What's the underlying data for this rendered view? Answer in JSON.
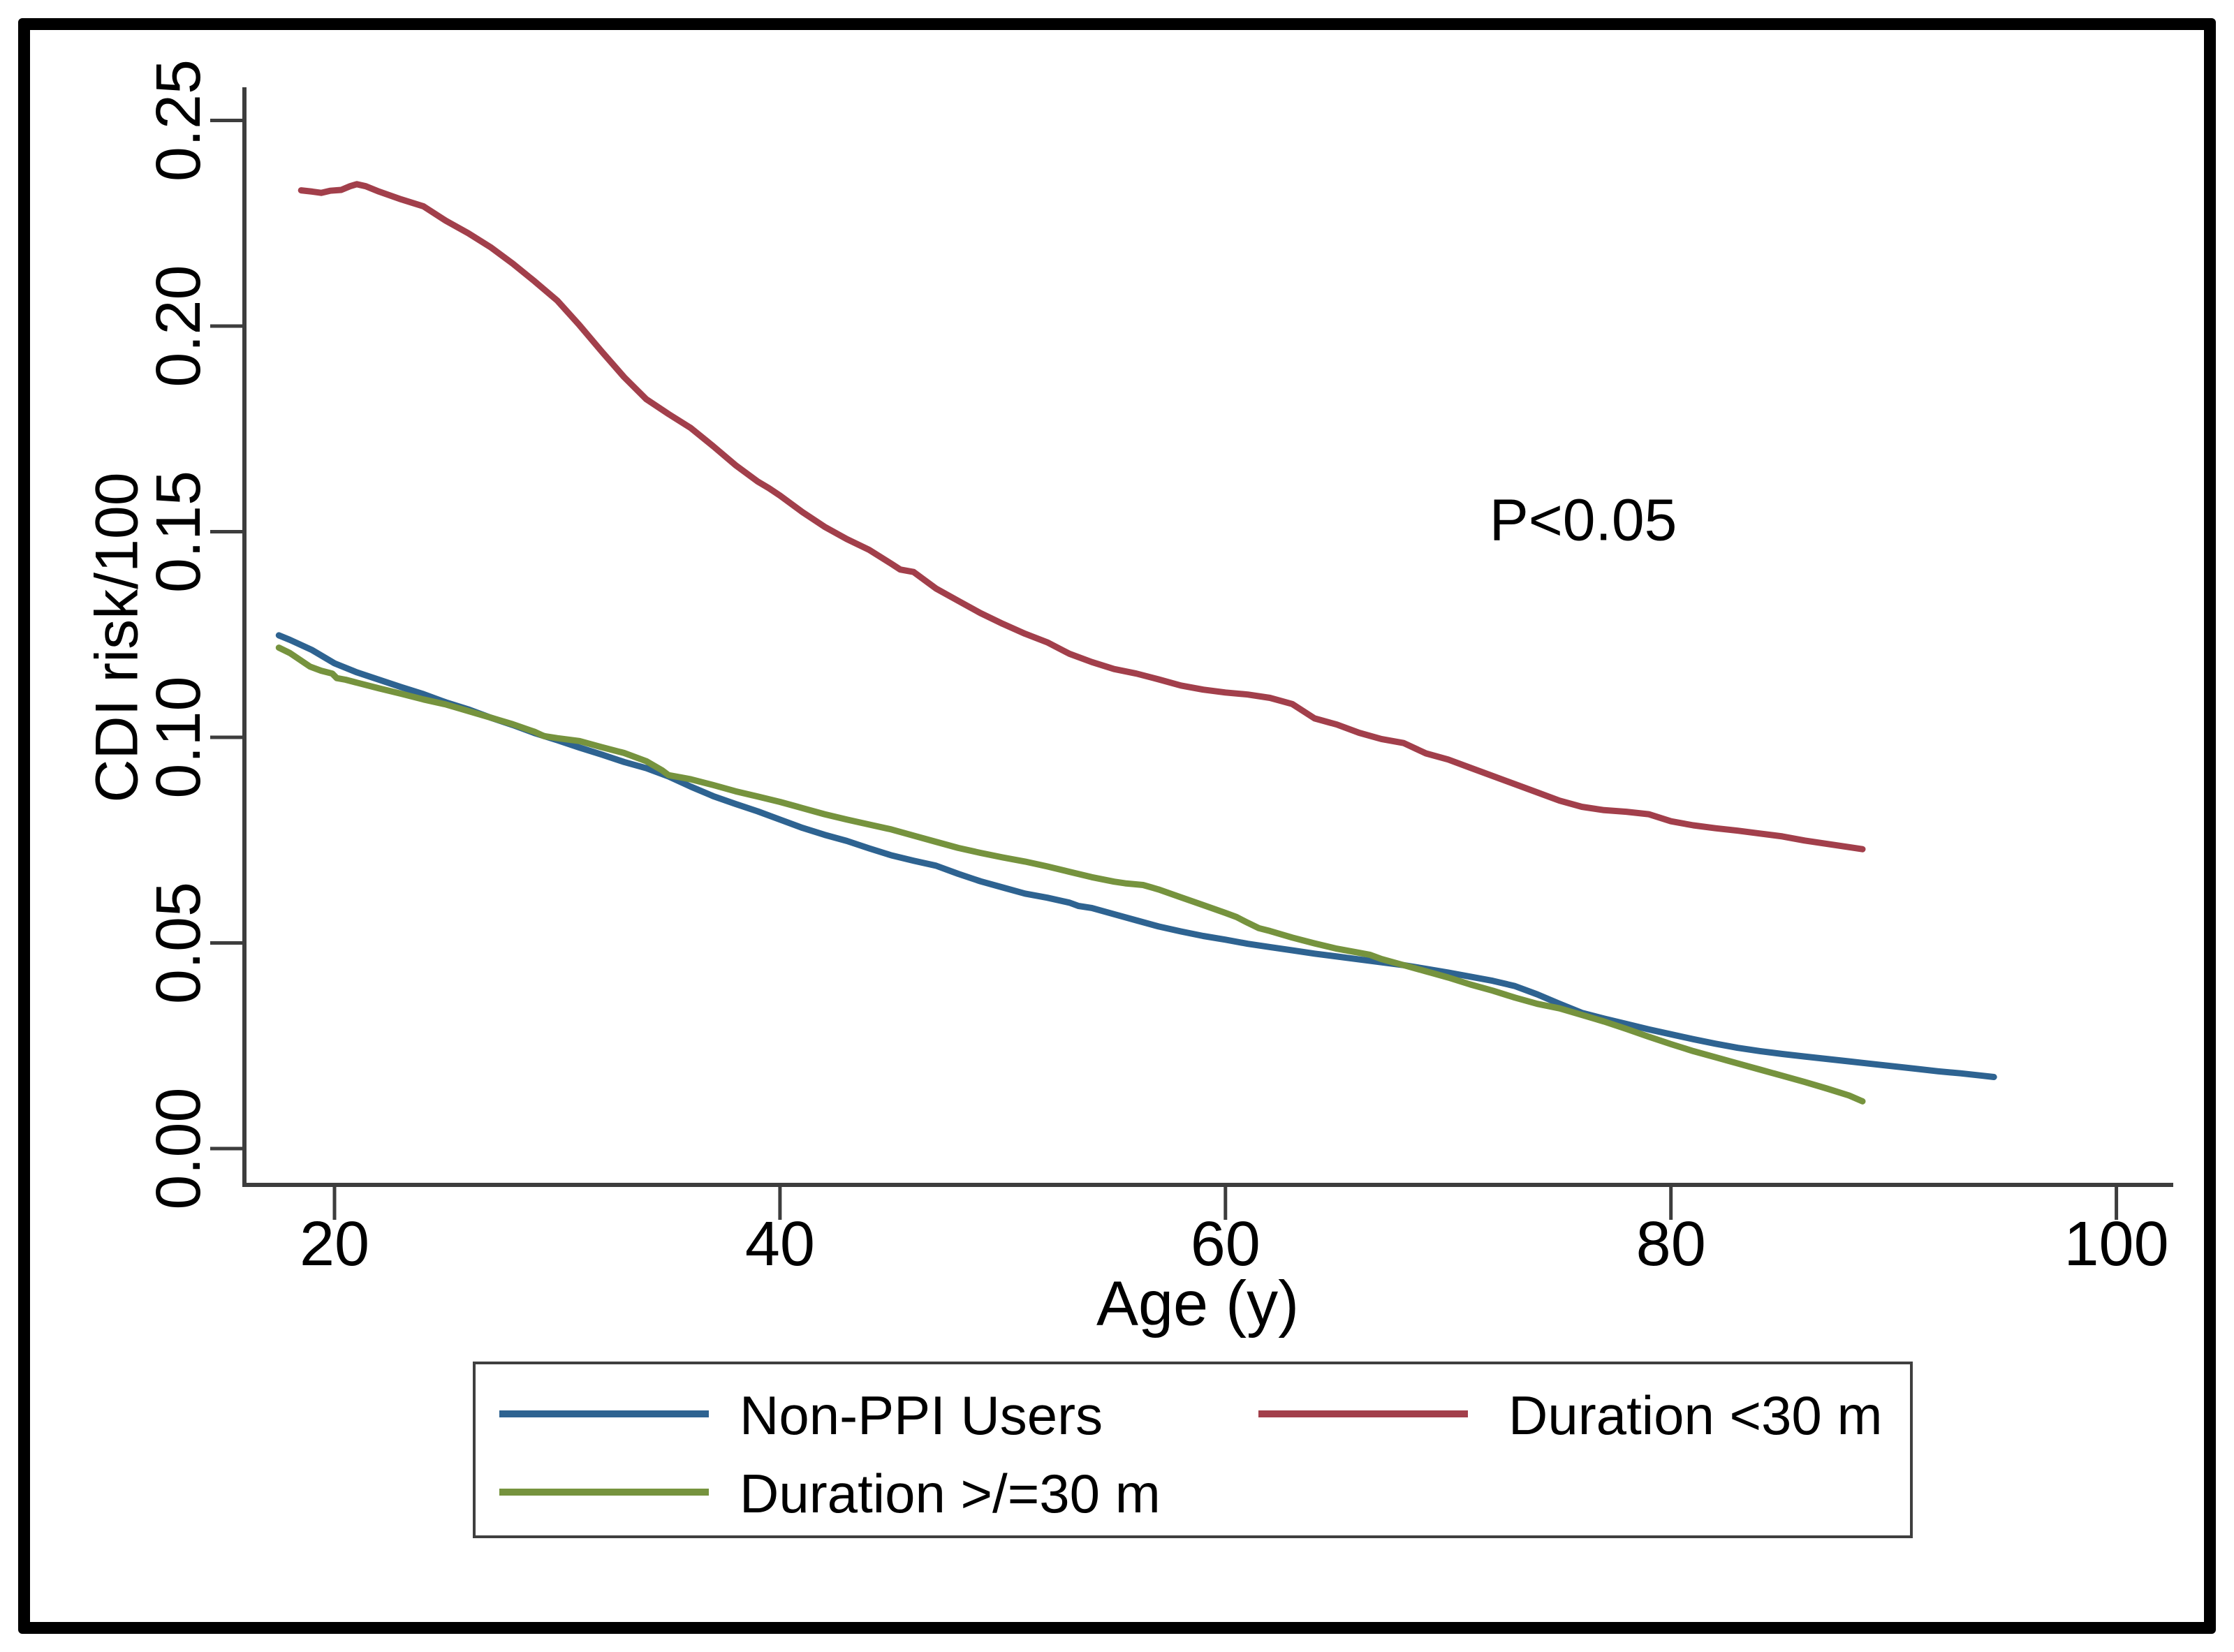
{
  "figure": {
    "background": "#ffffff",
    "frame_color": "#000000",
    "axis_color": "#3d3d3d",
    "text_color": "#000000"
  },
  "chart_data": {
    "type": "line",
    "title": "",
    "xlabel": "Age (y)",
    "ylabel": "CDI risk/100",
    "annotation": {
      "text": "P<0.05"
    },
    "x_ticks": [
      20,
      40,
      60,
      80,
      100
    ],
    "x_tick_labels": [
      "20",
      "40",
      "60",
      "80",
      "100"
    ],
    "y_ticks": [
      0.0,
      0.05,
      0.1,
      0.15,
      0.2,
      0.25
    ],
    "y_tick_labels": [
      "0.00",
      "0.05",
      "0.10",
      "0.15",
      "0.20",
      "0.25"
    ],
    "xlim": [
      16,
      102
    ],
    "ylim": [
      -0.009,
      0.2555
    ],
    "grid": false,
    "legend_position": "bottom",
    "series": [
      {
        "name": "Non-PPI Users",
        "color": "#2e6391",
        "points": [
          [
            17.5,
            0.1248
          ],
          [
            18,
            0.1237
          ],
          [
            19,
            0.1212
          ],
          [
            20,
            0.118
          ],
          [
            21,
            0.1158
          ],
          [
            22,
            0.114
          ],
          [
            23,
            0.1122
          ],
          [
            24,
            0.1105
          ],
          [
            25,
            0.1085
          ],
          [
            26,
            0.1068
          ],
          [
            27,
            0.1048
          ],
          [
            28,
            0.103
          ],
          [
            29,
            0.101
          ],
          [
            30,
            0.0993
          ],
          [
            31,
            0.0975
          ],
          [
            32,
            0.0958
          ],
          [
            33,
            0.094
          ],
          [
            34,
            0.0925
          ],
          [
            35,
            0.0905
          ],
          [
            36,
            0.088
          ],
          [
            37,
            0.0857
          ],
          [
            38,
            0.0838
          ],
          [
            39,
            0.082
          ],
          [
            40,
            0.08
          ],
          [
            41,
            0.078
          ],
          [
            42,
            0.0763
          ],
          [
            43,
            0.0748
          ],
          [
            44,
            0.073
          ],
          [
            45,
            0.0713
          ],
          [
            46,
            0.07
          ],
          [
            47,
            0.0688
          ],
          [
            48,
            0.0668
          ],
          [
            49,
            0.065
          ],
          [
            50,
            0.0635
          ],
          [
            51,
            0.062
          ],
          [
            52,
            0.061
          ],
          [
            53,
            0.0598
          ],
          [
            53.4,
            0.059
          ],
          [
            54,
            0.0585
          ],
          [
            55,
            0.057
          ],
          [
            56,
            0.0555
          ],
          [
            57,
            0.054
          ],
          [
            58,
            0.0528
          ],
          [
            59,
            0.0517
          ],
          [
            60,
            0.0508
          ],
          [
            61,
            0.0498
          ],
          [
            62,
            0.049
          ],
          [
            63,
            0.0482
          ],
          [
            64,
            0.0474
          ],
          [
            65,
            0.0467
          ],
          [
            66,
            0.046
          ],
          [
            67,
            0.0453
          ],
          [
            68,
            0.0446
          ],
          [
            69,
            0.0437
          ],
          [
            70,
            0.0428
          ],
          [
            71,
            0.0418
          ],
          [
            72,
            0.0408
          ],
          [
            73,
            0.0395
          ],
          [
            74,
            0.0375
          ],
          [
            75,
            0.0352
          ],
          [
            76,
            0.033
          ],
          [
            77,
            0.0316
          ],
          [
            78,
            0.0303
          ],
          [
            79,
            0.029
          ],
          [
            80,
            0.0278
          ],
          [
            81,
            0.0266
          ],
          [
            82,
            0.0255
          ],
          [
            83,
            0.0245
          ],
          [
            84,
            0.0237
          ],
          [
            85,
            0.023
          ],
          [
            86,
            0.0224
          ],
          [
            87,
            0.0218
          ],
          [
            88,
            0.0212
          ],
          [
            89,
            0.0206
          ],
          [
            90,
            0.02
          ],
          [
            91,
            0.0194
          ],
          [
            92,
            0.0188
          ],
          [
            93,
            0.0183
          ],
          [
            94,
            0.0177
          ],
          [
            94.5,
            0.0174
          ]
        ]
      },
      {
        "name": "Duration <30 m",
        "color": "#a23f4b",
        "points": [
          [
            18.5,
            0.233
          ],
          [
            19,
            0.2327
          ],
          [
            19.4,
            0.2324
          ],
          [
            19.8,
            0.2329
          ],
          [
            20.3,
            0.2331
          ],
          [
            20.7,
            0.234
          ],
          [
            21,
            0.2345
          ],
          [
            21.4,
            0.234
          ],
          [
            22,
            0.2327
          ],
          [
            23,
            0.2308
          ],
          [
            24,
            0.2291
          ],
          [
            25,
            0.2256
          ],
          [
            26,
            0.2226
          ],
          [
            27,
            0.2192
          ],
          [
            28,
            0.2152
          ],
          [
            29,
            0.2108
          ],
          [
            30,
            0.2062
          ],
          [
            31,
            0.2002
          ],
          [
            32,
            0.1938
          ],
          [
            33,
            0.1876
          ],
          [
            34,
            0.1822
          ],
          [
            35,
            0.1786
          ],
          [
            36,
            0.1752
          ],
          [
            37,
            0.1708
          ],
          [
            38,
            0.1662
          ],
          [
            39,
            0.1622
          ],
          [
            39.5,
            0.1606
          ],
          [
            40,
            0.1588
          ],
          [
            41,
            0.1548
          ],
          [
            42,
            0.1512
          ],
          [
            43,
            0.1482
          ],
          [
            44,
            0.1456
          ],
          [
            45,
            0.1422
          ],
          [
            45.4,
            0.1408
          ],
          [
            46,
            0.1402
          ],
          [
            46.5,
            0.1382
          ],
          [
            47,
            0.1362
          ],
          [
            48,
            0.1332
          ],
          [
            49,
            0.1302
          ],
          [
            50,
            0.1276
          ],
          [
            51,
            0.1252
          ],
          [
            52,
            0.1231
          ],
          [
            53,
            0.1203
          ],
          [
            54,
            0.1183
          ],
          [
            55,
            0.1166
          ],
          [
            56,
            0.1155
          ],
          [
            57,
            0.1141
          ],
          [
            58,
            0.1126
          ],
          [
            59,
            0.1116
          ],
          [
            60,
            0.1109
          ],
          [
            61,
            0.1104
          ],
          [
            62,
            0.1096
          ],
          [
            63,
            0.1081
          ],
          [
            64,
            0.1046
          ],
          [
            65,
            0.1031
          ],
          [
            66,
            0.1011
          ],
          [
            67,
            0.0996
          ],
          [
            68,
            0.0986
          ],
          [
            69,
            0.0961
          ],
          [
            70,
            0.0946
          ],
          [
            71,
            0.0926
          ],
          [
            72,
            0.0906
          ],
          [
            73,
            0.0886
          ],
          [
            74,
            0.0866
          ],
          [
            75,
            0.0846
          ],
          [
            76,
            0.0831
          ],
          [
            77,
            0.0823
          ],
          [
            78,
            0.0819
          ],
          [
            79,
            0.0813
          ],
          [
            80,
            0.0796
          ],
          [
            81,
            0.0786
          ],
          [
            82,
            0.0779
          ],
          [
            83,
            0.0773
          ],
          [
            84,
            0.0766
          ],
          [
            85,
            0.0759
          ],
          [
            86,
            0.0749
          ],
          [
            87,
            0.0741
          ],
          [
            88,
            0.0733
          ],
          [
            88.6,
            0.0728
          ]
        ]
      },
      {
        "name": "Duration >/=30 m",
        "color": "#76933e",
        "points": [
          [
            17.5,
            0.1218
          ],
          [
            18,
            0.1205
          ],
          [
            18.9,
            0.1172
          ],
          [
            19.4,
            0.1162
          ],
          [
            19.9,
            0.1155
          ],
          [
            20.1,
            0.1144
          ],
          [
            20.5,
            0.114
          ],
          [
            21,
            0.1133
          ],
          [
            22,
            0.1119
          ],
          [
            23,
            0.1106
          ],
          [
            24,
            0.1092
          ],
          [
            25,
            0.108
          ],
          [
            26,
            0.1064
          ],
          [
            27,
            0.1048
          ],
          [
            28,
            0.1032
          ],
          [
            29,
            0.1013
          ],
          [
            29.4,
            0.1003
          ],
          [
            30,
            0.0998
          ],
          [
            31,
            0.0991
          ],
          [
            32,
            0.0976
          ],
          [
            33,
            0.0962
          ],
          [
            34,
            0.0942
          ],
          [
            34.7,
            0.092
          ],
          [
            35,
            0.0908
          ],
          [
            35.6,
            0.0902
          ],
          [
            36,
            0.0898
          ],
          [
            37,
            0.0884
          ],
          [
            38,
            0.0869
          ],
          [
            39,
            0.0856
          ],
          [
            40,
            0.0843
          ],
          [
            41,
            0.0828
          ],
          [
            42,
            0.0813
          ],
          [
            43,
            0.08
          ],
          [
            44,
            0.0788
          ],
          [
            45,
            0.0776
          ],
          [
            46,
            0.0761
          ],
          [
            47,
            0.0746
          ],
          [
            48,
            0.0731
          ],
          [
            49,
            0.0719
          ],
          [
            50,
            0.0708
          ],
          [
            51,
            0.0698
          ],
          [
            52,
            0.0686
          ],
          [
            53,
            0.0673
          ],
          [
            54,
            0.066
          ],
          [
            55,
            0.0649
          ],
          [
            55.5,
            0.0645
          ],
          [
            56.3,
            0.0641
          ],
          [
            57,
            0.063
          ],
          [
            58,
            0.0611
          ],
          [
            59,
            0.0592
          ],
          [
            60,
            0.0573
          ],
          [
            60.5,
            0.0563
          ],
          [
            61,
            0.0549
          ],
          [
            61.5,
            0.0536
          ],
          [
            62,
            0.0529
          ],
          [
            63,
            0.0513
          ],
          [
            64,
            0.0499
          ],
          [
            65,
            0.0486
          ],
          [
            66,
            0.0476
          ],
          [
            66.5,
            0.0471
          ],
          [
            67,
            0.0461
          ],
          [
            68,
            0.0446
          ],
          [
            69,
            0.0431
          ],
          [
            70,
            0.0416
          ],
          [
            71,
            0.0399
          ],
          [
            72,
            0.0384
          ],
          [
            73,
            0.0367
          ],
          [
            74,
            0.0352
          ],
          [
            75,
            0.0341
          ],
          [
            76,
            0.0325
          ],
          [
            77,
            0.0309
          ],
          [
            78,
            0.0291
          ],
          [
            79,
            0.0272
          ],
          [
            80,
            0.0254
          ],
          [
            81,
            0.0237
          ],
          [
            82,
            0.0222
          ],
          [
            83,
            0.0207
          ],
          [
            84,
            0.0192
          ],
          [
            85,
            0.0177
          ],
          [
            86,
            0.0162
          ],
          [
            87,
            0.0146
          ],
          [
            88,
            0.0129
          ],
          [
            88.6,
            0.0115
          ]
        ]
      }
    ]
  }
}
